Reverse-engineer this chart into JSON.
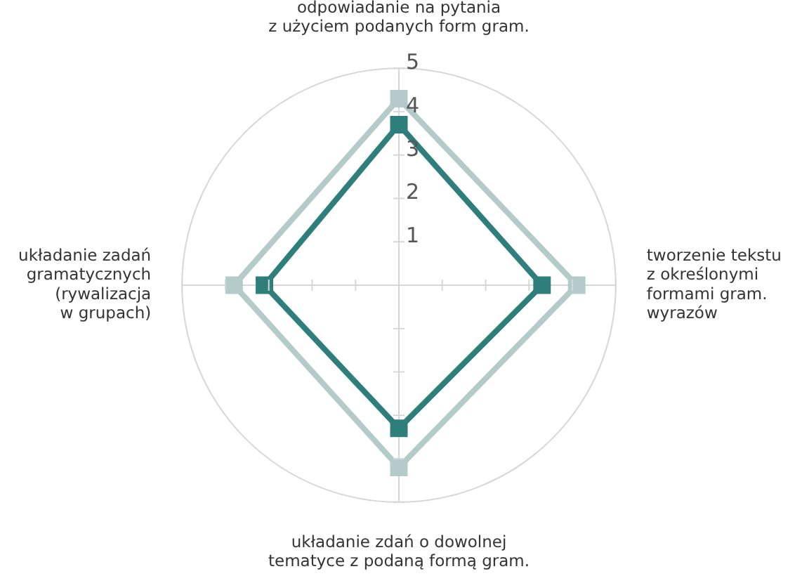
{
  "chart_data": {
    "type": "radar",
    "categories": [
      "odpowiadanie na pytania\nz użyciem podanych form gram.",
      "tworzenie tekstu\nz określonymi\nformami gram.\nwyrazów",
      "układanie zdań o dowolnej\ntematyce z podaną formą gram.",
      "układanie zadań\ngramatycznych\n(rywalizacja\nw grupach)"
    ],
    "series": [
      {
        "color": "#b5cbca",
        "values": [
          4.3,
          4.1,
          4.2,
          3.8
        ]
      },
      {
        "color": "#2e7f7c",
        "values": [
          3.7,
          3.3,
          3.3,
          3.1
        ]
      }
    ],
    "ylim": [
      0,
      5
    ],
    "yticks": [
      1,
      2,
      3,
      4,
      5
    ],
    "marker": "square",
    "legend": false
  }
}
